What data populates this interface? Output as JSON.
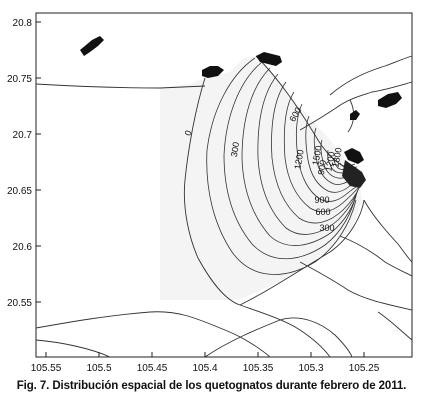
{
  "map": {
    "x_ticks": [
      "105.55",
      "105.5",
      "105.45",
      "105.4",
      "105.35",
      "105.3",
      "105.25"
    ],
    "y_ticks": [
      "20.8",
      "20.75",
      "20.7",
      "20.65",
      "20.6",
      "20.55"
    ],
    "contour_labels": [
      "0",
      "300",
      "600",
      "900",
      "1200",
      "300",
      "600",
      "900",
      "1200",
      "1500",
      "1800"
    ],
    "colors": {
      "frame": "#222222",
      "land": "#111111",
      "contour": "#333333",
      "water_fill": "#f4f4f4"
    }
  },
  "caption": "Fig. 7. Distribución espacial de los quetognatos durante febrero de 2011."
}
